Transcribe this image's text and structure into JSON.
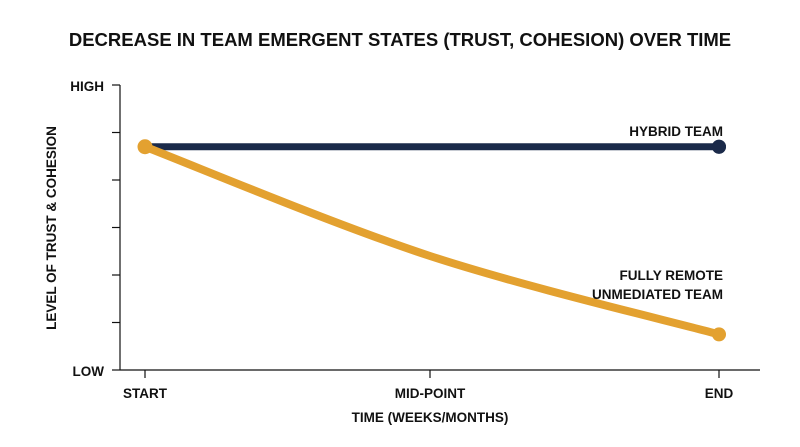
{
  "chart_data": {
    "type": "line",
    "title": "DECREASE IN TEAM EMERGENT STATES (TRUST, COHESION) OVER TIME",
    "xlabel": "TIME (WEEKS/MONTHS)",
    "ylabel": "LEVEL OF TRUST & COHESION",
    "x_categories": [
      "START",
      "MID-POINT",
      "END"
    ],
    "y_tick_labels": {
      "low": "LOW",
      "high": "HIGH"
    },
    "ylim": [
      0,
      6
    ],
    "grid": false,
    "series": [
      {
        "name": "HYBRID TEAM",
        "label_lines": [
          "HYBRID TEAM"
        ],
        "color": "#1b2a4a",
        "values": [
          4.7,
          4.7,
          4.7
        ],
        "markers": "endpoints"
      },
      {
        "name": "FULLY REMOTE UNMEDIATED TEAM",
        "label_lines": [
          "FULLY REMOTE",
          "UNMEDIATED TEAM"
        ],
        "color": "#e3a130",
        "values": [
          4.7,
          2.4,
          0.75
        ],
        "markers": "endpoints"
      }
    ]
  }
}
